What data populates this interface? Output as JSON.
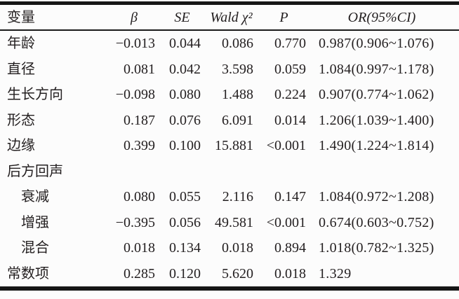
{
  "table": {
    "columns": {
      "variable": "变量",
      "beta": "β",
      "se": "SE",
      "wald": "Wald χ²",
      "p": "P",
      "or": "OR(95%CI)"
    },
    "rows": [
      {
        "label": "年龄",
        "beta": "−0.013",
        "se": "0.044",
        "wald": "0.086",
        "p": "0.770",
        "or": "0.987(0.906~1.076)"
      },
      {
        "label": "直径",
        "beta": "0.081",
        "se": "0.042",
        "wald": "3.598",
        "p": "0.059",
        "or": "1.084(0.997~1.178)"
      },
      {
        "label": "生长方向",
        "beta": "−0.098",
        "se": "0.080",
        "wald": "1.488",
        "p": "0.224",
        "or": "0.907(0.774~1.062)"
      },
      {
        "label": "形态",
        "beta": "0.187",
        "se": "0.076",
        "wald": "6.091",
        "p": "0.014",
        "or": "1.206(1.039~1.400)"
      },
      {
        "label": "边缘",
        "beta": "0.399",
        "se": "0.100",
        "wald": "15.881",
        "p": "<0.001",
        "or": "1.490(1.224~1.814)"
      },
      {
        "label": "后方回声",
        "beta": "",
        "se": "",
        "wald": "",
        "p": "",
        "or": ""
      },
      {
        "label": "衰减",
        "beta": "0.080",
        "se": "0.055",
        "wald": "2.116",
        "p": "0.147",
        "or": "1.084(0.972~1.208)"
      },
      {
        "label": "增强",
        "beta": "−0.395",
        "se": "0.056",
        "wald": "49.581",
        "p": "<0.001",
        "or": "0.674(0.603~0.752)"
      },
      {
        "label": "混合",
        "beta": "0.018",
        "se": "0.134",
        "wald": "0.018",
        "p": "0.894",
        "or": "1.018(0.782~1.325)"
      },
      {
        "label": "常数项",
        "beta": "0.285",
        "se": "0.120",
        "wald": "5.620",
        "p": "0.018",
        "or": "1.329"
      }
    ]
  },
  "colors": {
    "text": "#231f20",
    "rule": "#161616",
    "background": "#fcfcfc"
  }
}
